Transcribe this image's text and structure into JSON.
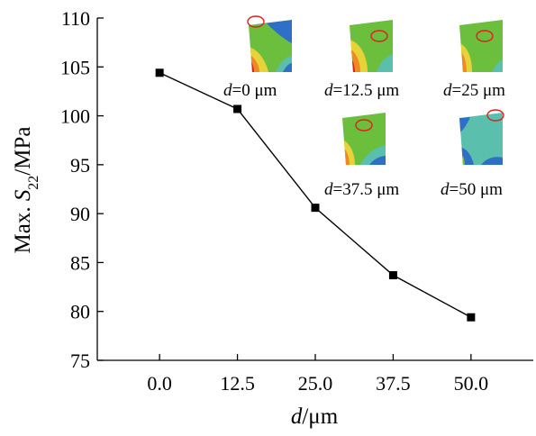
{
  "chart_data": {
    "type": "line",
    "x": [
      0.0,
      12.5,
      25.0,
      37.5,
      50.0
    ],
    "x_tick_labels": [
      "0.0",
      "12.5",
      "25.0",
      "37.5",
      "50.0"
    ],
    "series": [
      {
        "values": [
          104.4,
          100.7,
          90.6,
          83.7,
          79.4
        ],
        "color": "#000000",
        "marker": "square"
      }
    ],
    "xlim": [
      -10,
      60
    ],
    "ylim": [
      75,
      110
    ],
    "y_ticks": [
      75,
      80,
      85,
      90,
      95,
      100,
      105,
      110
    ],
    "xlabel": {
      "var": "d",
      "unit": "/μm"
    },
    "ylabel": {
      "prefix": "Max. ",
      "var": "S",
      "sub": "22",
      "unit": "/MPa"
    },
    "grid": false,
    "insets": [
      {
        "var": "d",
        "text": "=0 μm",
        "scheme": "a"
      },
      {
        "var": "d",
        "text": "=12.5 μm",
        "scheme": "b"
      },
      {
        "var": "d",
        "text": "=25 μm",
        "scheme": "c"
      },
      {
        "var": "d",
        "text": "=37.5 μm",
        "scheme": "d"
      },
      {
        "var": "d",
        "text": "=50 μm",
        "scheme": "e"
      }
    ],
    "inset_colors": {
      "green": "#6cbf3c",
      "teal": "#5bbfae",
      "blue": "#2f6fc6",
      "yellow": "#e8d23a",
      "orange": "#ef8a22",
      "red": "#d6271e",
      "highlight": "#e02020"
    }
  }
}
